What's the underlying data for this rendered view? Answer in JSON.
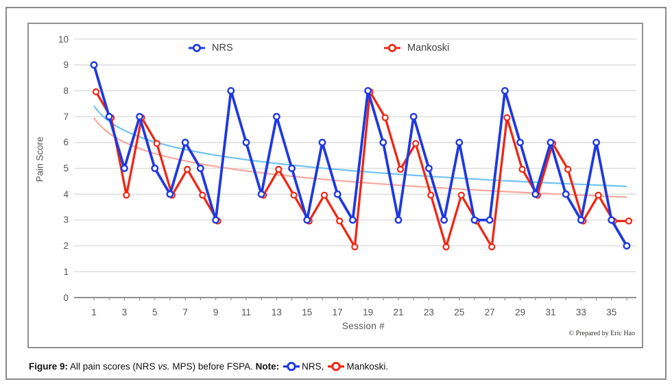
{
  "figure": {
    "caption": {
      "prefix": "Figure 9:",
      "text_1": " All pain scores (NRS ",
      "vs": "vs.",
      "text_2": " MPS) before FSPA. ",
      "note_label": "Note:",
      "nrs_label": "NRS,",
      "mankoski_label": "Mankoski."
    },
    "copyright": "© Prepared by Eric Hao"
  },
  "colors": {
    "nrs_blue": "#1f39e0",
    "mankoski_red": "#f02613",
    "trend_blue": "#70c2f2",
    "trend_red": "#f7a89b",
    "gridline": "#d9d9d9",
    "axis": "#8f8f8f",
    "tick_text": "#545454",
    "legend_text": "#3f3f3f"
  },
  "chart_data": {
    "type": "line",
    "title": "",
    "xlabel": "Session  #",
    "ylabel": "Pain Score",
    "x": [
      1,
      2,
      3,
      4,
      5,
      6,
      7,
      8,
      9,
      10,
      11,
      12,
      13,
      14,
      15,
      16,
      17,
      18,
      19,
      20,
      21,
      22,
      23,
      24,
      25,
      26,
      27,
      28,
      29,
      30,
      31,
      32,
      33,
      34,
      35,
      36
    ],
    "x_tick_labels": [
      1,
      3,
      5,
      7,
      9,
      11,
      13,
      15,
      17,
      19,
      21,
      23,
      25,
      27,
      29,
      31,
      33,
      35
    ],
    "y_ticks": [
      0,
      1,
      2,
      3,
      4,
      5,
      6,
      7,
      8,
      9,
      10
    ],
    "ylim": [
      0,
      10
    ],
    "grid": "horizontal",
    "legend_position": "top-inside",
    "series": [
      {
        "name": "NRS",
        "color": "#1f39e0",
        "values": [
          9,
          7,
          5,
          7,
          5,
          4,
          6,
          5,
          3,
          8,
          6,
          4,
          7,
          5,
          3,
          6,
          4,
          3,
          8,
          6,
          3,
          7,
          5,
          3,
          6,
          3,
          3,
          8,
          6,
          4,
          6,
          4,
          3,
          6,
          3,
          2
        ]
      },
      {
        "name": "Mankoski",
        "color": "#f02613",
        "values": [
          8,
          7,
          4,
          7,
          6,
          4,
          5,
          4,
          3,
          null,
          null,
          4,
          5,
          4,
          3,
          4,
          3,
          2,
          8,
          7,
          5,
          6,
          4,
          2,
          4,
          3,
          2,
          7,
          5,
          4,
          6,
          5,
          3,
          4,
          3,
          3
        ]
      }
    ],
    "trendlines": [
      {
        "series": "NRS",
        "type": "logarithmic",
        "color": "#70c2f2",
        "a": 7.42,
        "b": 0.87,
        "formula": "y = 7.42 - 0.87*ln(x)"
      },
      {
        "series": "Mankoski",
        "type": "logarithmic",
        "color": "#f7a89b",
        "a": 6.95,
        "b": 0.855,
        "formula": "y = 6.95 - 0.855*ln(x)"
      }
    ]
  }
}
